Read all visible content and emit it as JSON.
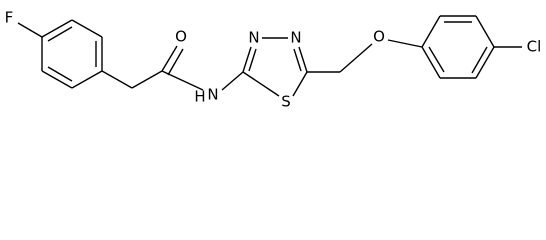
{
  "atoms": {
    "fluorine": "F",
    "carbonyl_oxygen": "O",
    "amide_hydrogen": "H",
    "amide_nitrogen": "N",
    "ring_nitrogen_1": "N",
    "ring_nitrogen_2": "N",
    "ring_sulfur": "S",
    "ether_oxygen": "O",
    "chlorine": "Cl"
  }
}
